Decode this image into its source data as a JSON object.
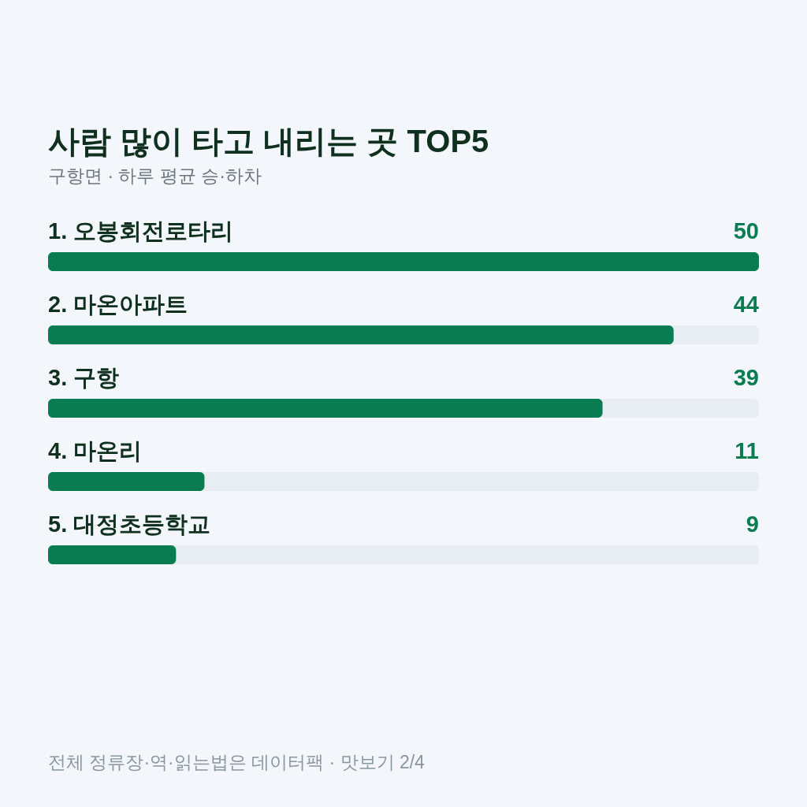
{
  "chart_data": {
    "type": "bar",
    "orientation": "horizontal",
    "title": "사람 많이 타고 내리는 곳 TOP5",
    "subtitle": "구항면 · 하루 평균 승·하차",
    "categories": [
      "1. 오봉회전로타리",
      "2. 마온아파트",
      "3. 구항",
      "4. 마온리",
      "5. 대정초등학교"
    ],
    "values": [
      50,
      44,
      39,
      11,
      9
    ],
    "color": "#0a7c52",
    "xlim": [
      0,
      50
    ],
    "tick_labels": "y",
    "data_labels": true,
    "annotations": [
      "전체 정류장·역·읽는법은 데이터팩 · 맛보기 2/4"
    ]
  }
}
